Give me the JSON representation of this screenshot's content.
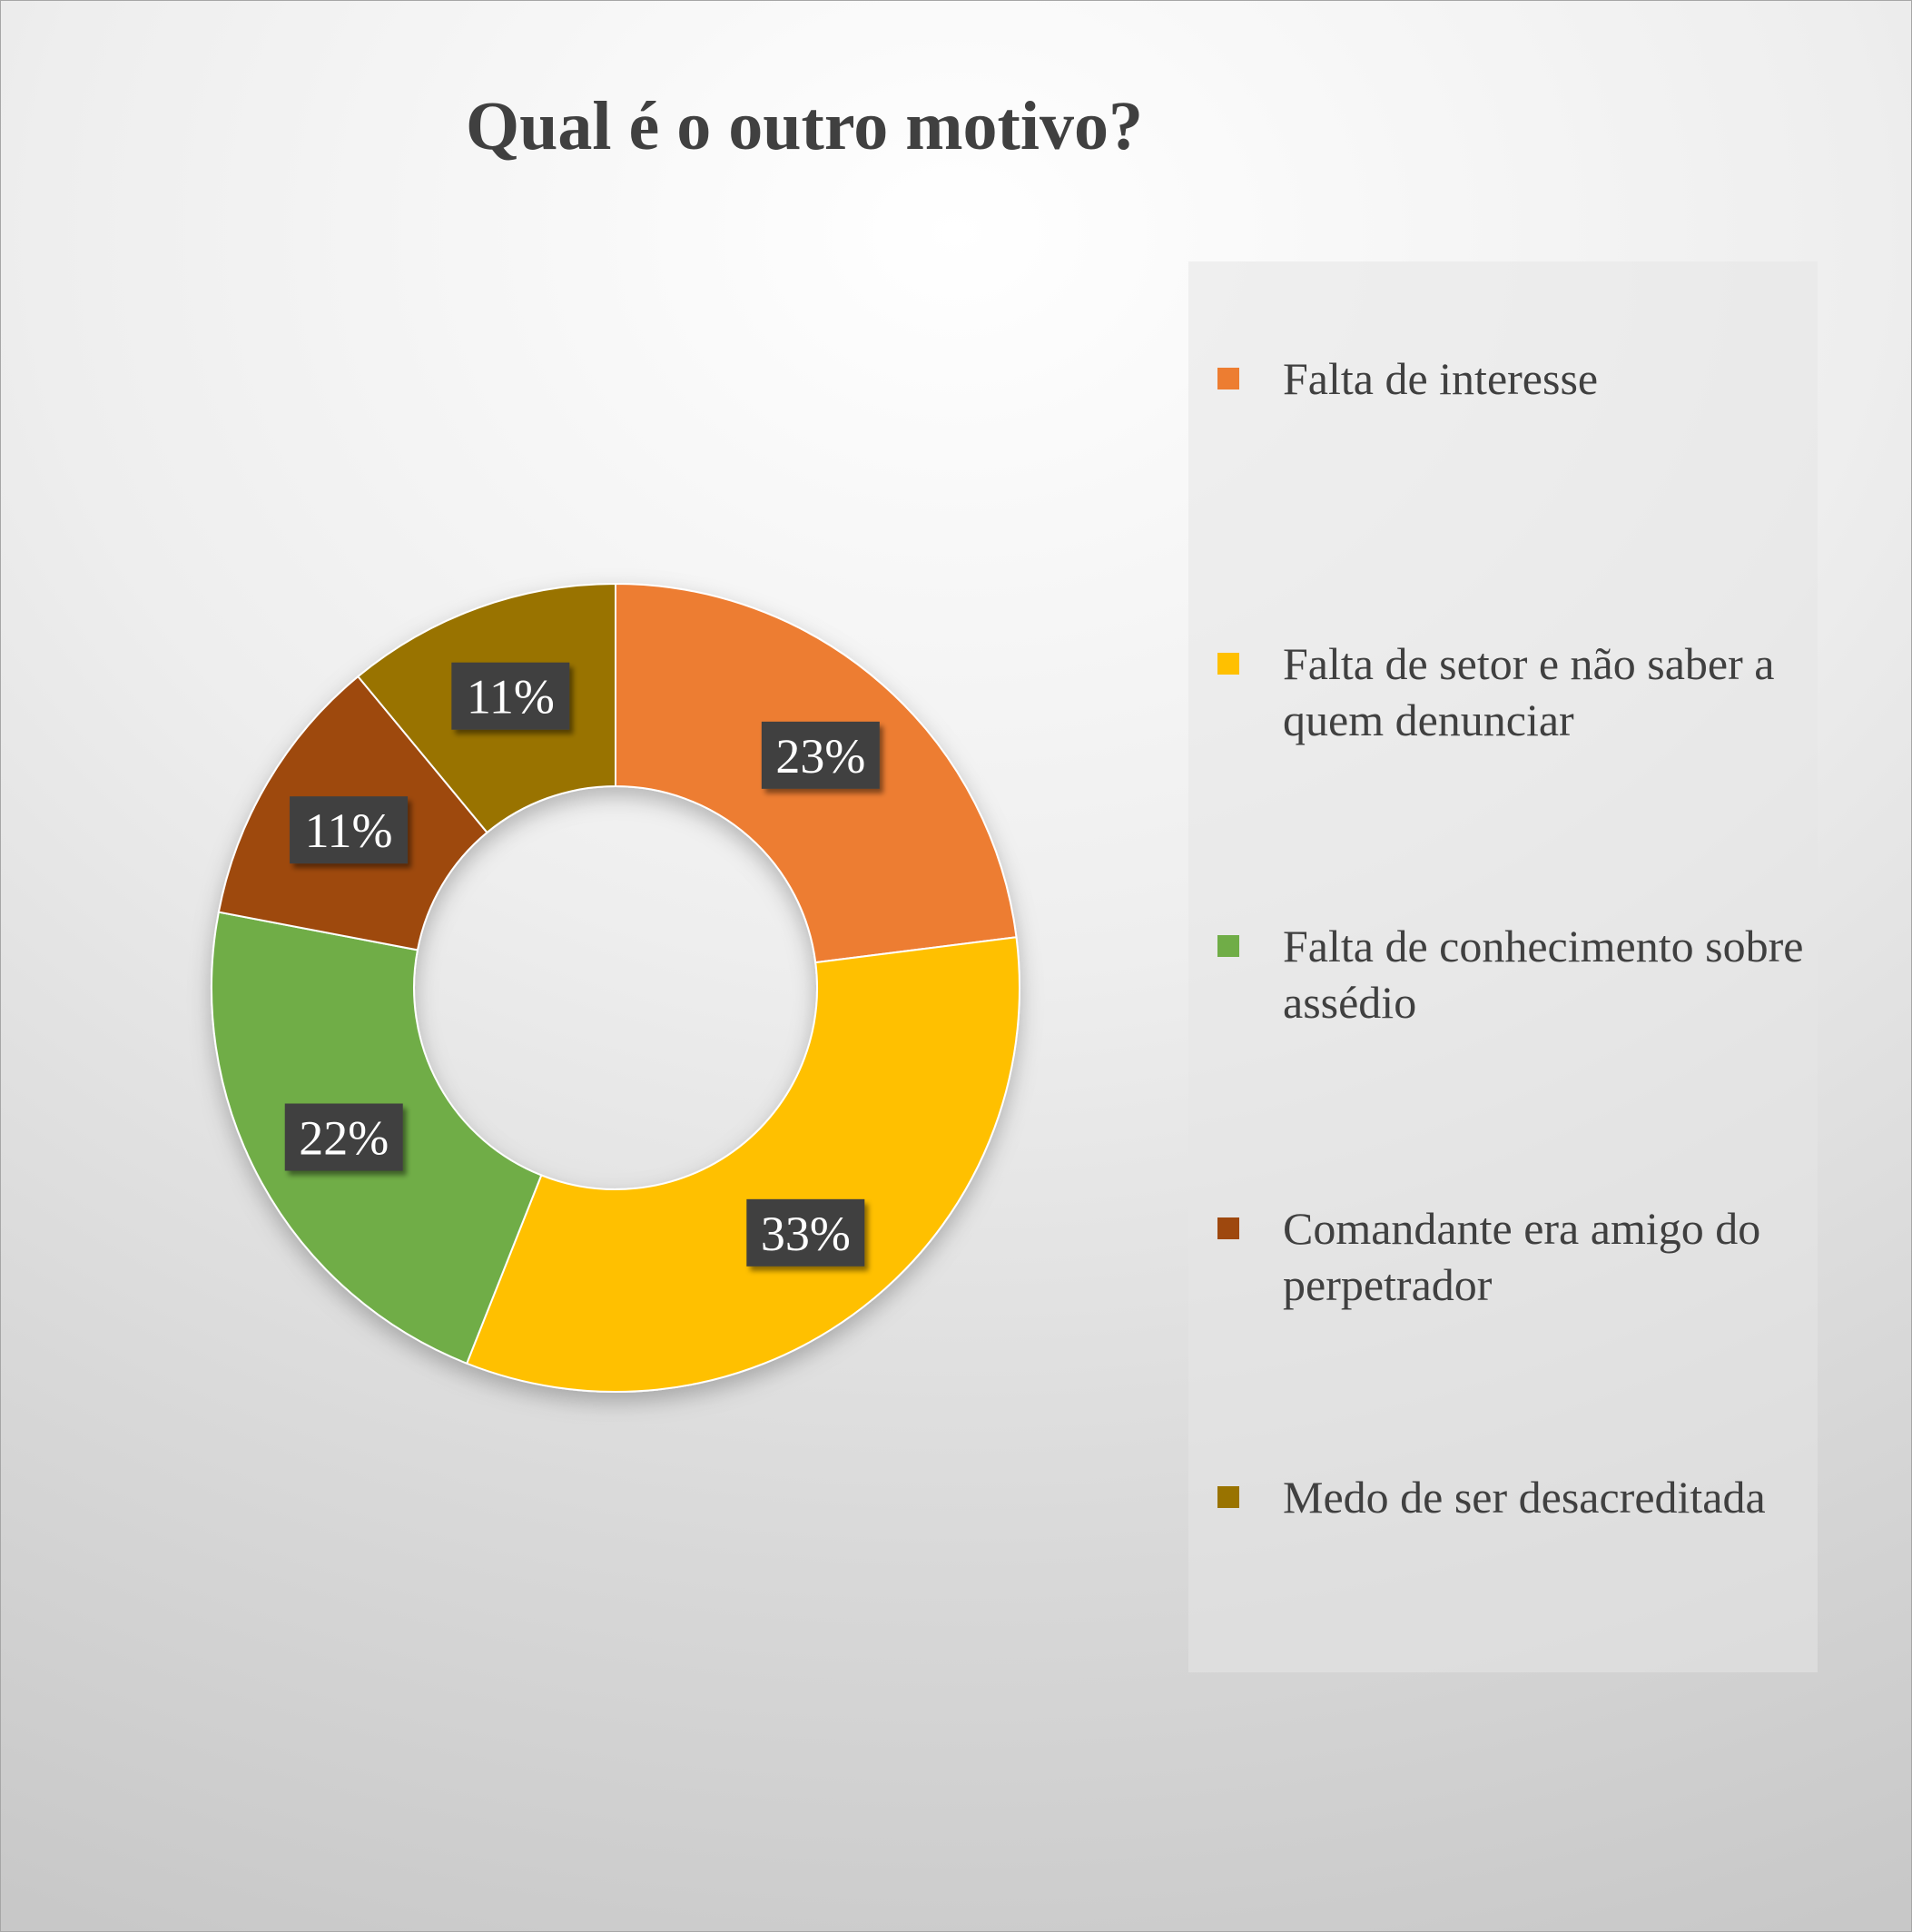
{
  "chart_data": {
    "type": "pie",
    "title": "Qual é o outro motivo?",
    "categories": [
      "Falta de interesse",
      "Falta de setor e não saber a quem denunciar",
      "Falta de conhecimento sobre assédio",
      "Comandante era amigo do perpetrador",
      "Medo de ser desacreditada"
    ],
    "values": [
      23,
      33,
      22,
      11,
      11
    ],
    "data_labels": [
      "23%",
      "33%",
      "22%",
      "11%",
      "11%"
    ],
    "unit": "%",
    "donut": true,
    "colors": [
      "#ED7D31",
      "#FFC000",
      "#70AD47",
      "#9E480E",
      "#997300"
    ],
    "legend_position": "right"
  }
}
